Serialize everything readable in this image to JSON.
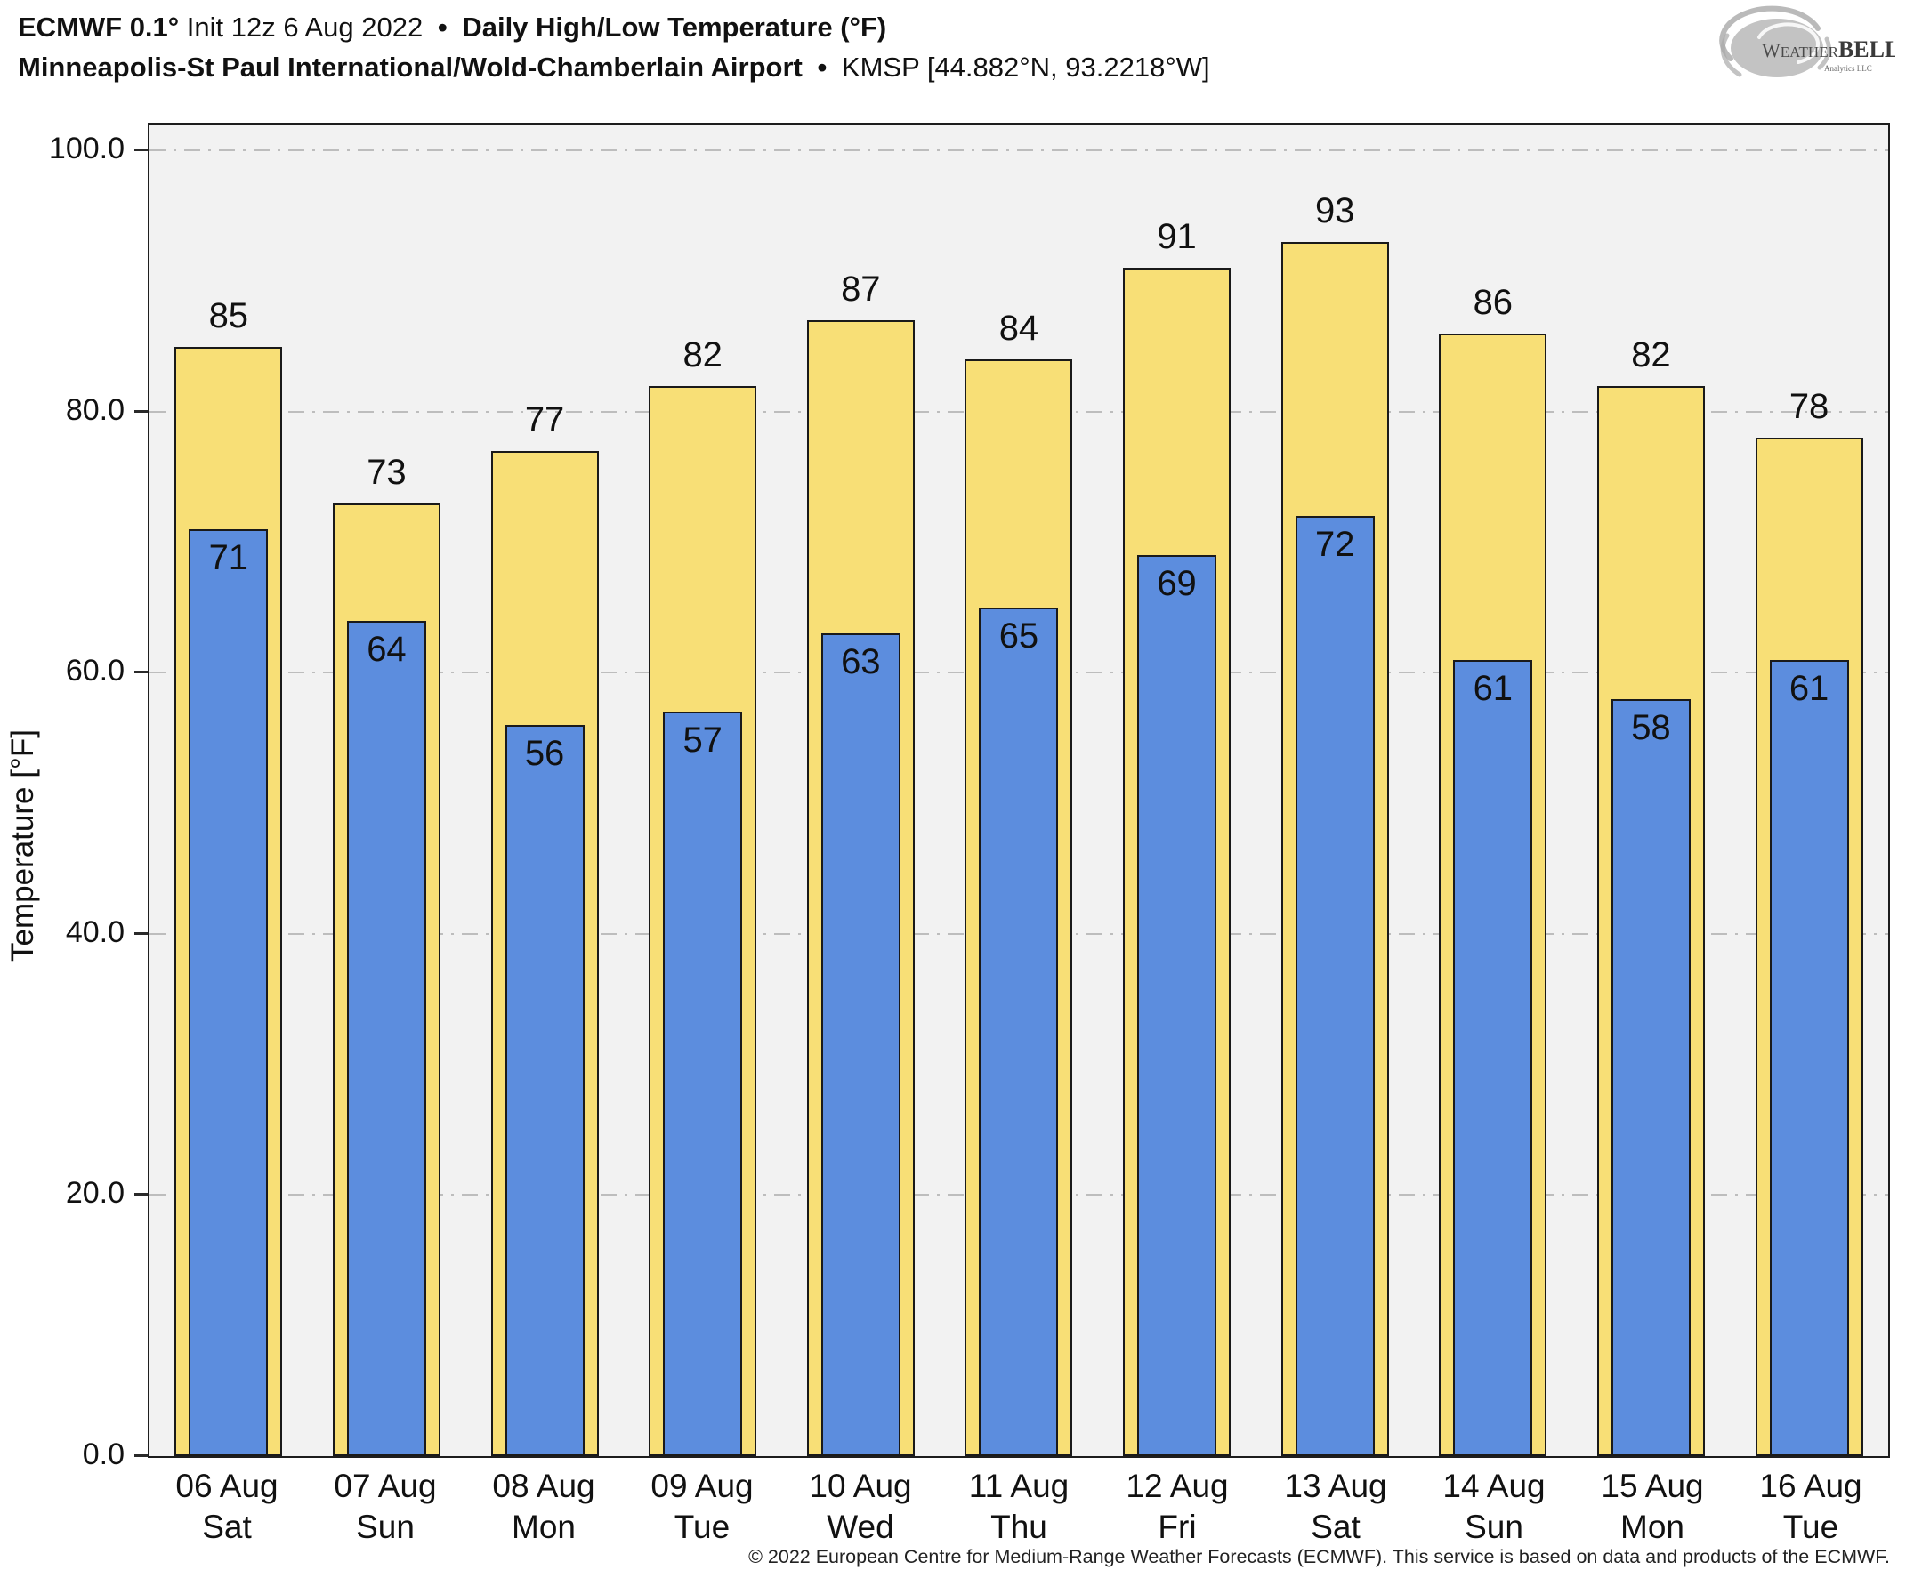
{
  "header": {
    "line1": {
      "bold1": "ECMWF 0.1°",
      "regular1": " Init 12z 6 Aug 2022 ",
      "bullet": "•",
      "bold2": " Daily High/Low Temperature (°F)"
    },
    "line2": {
      "bold1": "Minneapolis-St Paul International/Wold-Chamberlain Airport ",
      "bullet": "•",
      "regular1": " KMSP [44.882°N, 93.2218°W]"
    }
  },
  "logo": {
    "text_left": "Weather",
    "text_right": "BELL",
    "subtext": "Analytics LLC",
    "color": "#9a9a9a"
  },
  "chart_data": {
    "type": "bar",
    "title": "ECMWF 0.1° Init 12z 6 Aug 2022 — Daily High/Low Temperature (°F)",
    "subtitle": "Minneapolis-St Paul International/Wold-Chamberlain Airport • KMSP [44.882°N, 93.2218°W]",
    "ylabel": "Temperature [°F]",
    "ylim": [
      0,
      102
    ],
    "yticks": [
      0,
      20,
      40,
      60,
      80,
      100
    ],
    "ytick_labels": [
      "0.0",
      "20.0",
      "40.0",
      "60.0",
      "80.0",
      "100.0"
    ],
    "grid": true,
    "grid_style": "dash-dot",
    "legend": "none",
    "categories": [
      {
        "date": "06 Aug",
        "day": "Sat"
      },
      {
        "date": "07 Aug",
        "day": "Sun"
      },
      {
        "date": "08 Aug",
        "day": "Mon"
      },
      {
        "date": "09 Aug",
        "day": "Tue"
      },
      {
        "date": "10 Aug",
        "day": "Wed"
      },
      {
        "date": "11 Aug",
        "day": "Thu"
      },
      {
        "date": "12 Aug",
        "day": "Fri"
      },
      {
        "date": "13 Aug",
        "day": "Sat"
      },
      {
        "date": "14 Aug",
        "day": "Sun"
      },
      {
        "date": "15 Aug",
        "day": "Mon"
      },
      {
        "date": "16 Aug",
        "day": "Tue"
      }
    ],
    "series": [
      {
        "name": "Daily High",
        "color": "#F8DF76",
        "values": [
          85,
          73,
          77,
          82,
          87,
          84,
          91,
          93,
          86,
          82,
          78
        ]
      },
      {
        "name": "Daily Low",
        "color": "#5C8DDE",
        "values": [
          71,
          64,
          56,
          57,
          63,
          65,
          69,
          72,
          61,
          58,
          61
        ]
      }
    ],
    "colors": {
      "plot_background": "#F2F2F2",
      "gridline": "#BDBDBD",
      "bar_border": "#1A1A1A",
      "axis_border": "#1D1D1D",
      "text": "#111111"
    }
  },
  "footer": {
    "copyright": "© 2022 European Centre for Medium-Range Weather Forecasts (ECMWF). This service is based on data and products of the ECMWF."
  }
}
